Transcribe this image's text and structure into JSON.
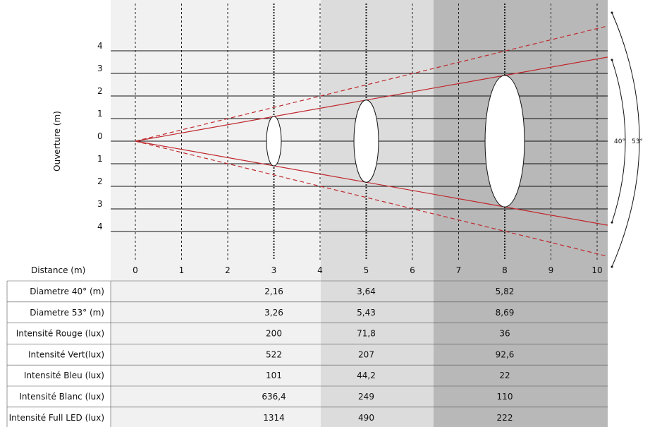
{
  "y_axis_label": "Ouverture (m)",
  "y_ticks": [
    "4",
    "3",
    "2",
    "1",
    "0",
    "1",
    "2",
    "3",
    "4"
  ],
  "x_axis_label": "Distance (m)",
  "x_ticks": [
    "0",
    "1",
    "2",
    "3",
    "4",
    "5",
    "6",
    "7",
    "8",
    "9",
    "10"
  ],
  "beam_angles": {
    "narrow": "40°",
    "wide": "53°"
  },
  "colors": {
    "beam": "#c0282d",
    "band_light": "#f1f1f1",
    "band_mid": "#dcdcdc",
    "band_dark": "#b8b8b8"
  },
  "chart_data": {
    "type": "table",
    "x": [
      3,
      5,
      8
    ],
    "rows": [
      {
        "label": "Diametre 40° (m)",
        "values": [
          "2,16",
          "3,64",
          "5,82"
        ]
      },
      {
        "label": "Diametre 53° (m)",
        "values": [
          "3,26",
          "5,43",
          "8,69"
        ]
      },
      {
        "label": "Intensité Rouge (lux)",
        "values": [
          "200",
          "71,8",
          "36"
        ]
      },
      {
        "label": "Intensité Vert(lux)",
        "values": [
          "522",
          "207",
          "92,6"
        ]
      },
      {
        "label": "Intensité Bleu (lux)",
        "values": [
          "101",
          "44,2",
          "22"
        ]
      },
      {
        "label": "Intensité Blanc (lux)",
        "values": [
          "636,4",
          "249",
          "110"
        ]
      },
      {
        "label": "Intensité Full LED (lux)",
        "values": [
          "1314",
          "490",
          "222"
        ]
      }
    ]
  }
}
